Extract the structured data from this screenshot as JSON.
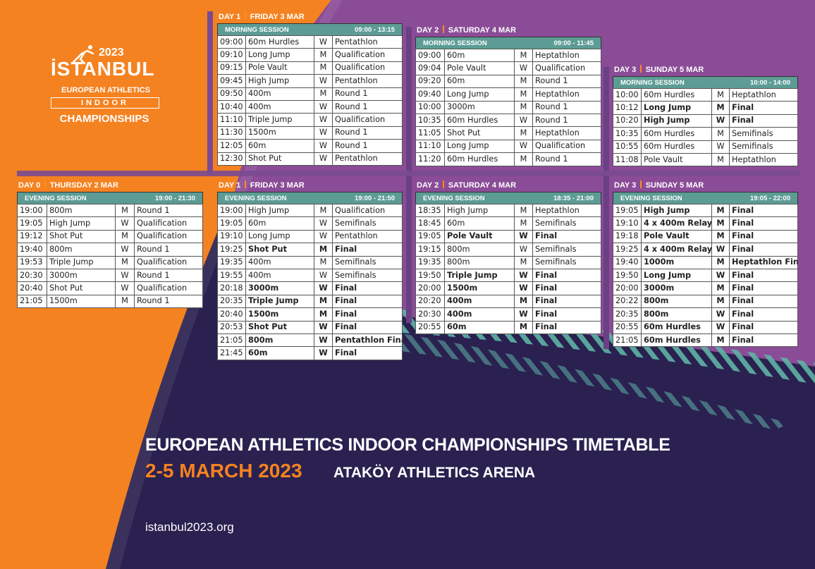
{
  "colors": {
    "orange": "#f58220",
    "purple": "#8b4c97",
    "navy": "#2a2150",
    "session_header": "#5c9c95",
    "accent_stripe": "#5fb3a7"
  },
  "logo": {
    "year": "2023",
    "city": "İSTANBUL",
    "org": "EUROPEAN ATHLETICS",
    "indoor": "INDOOR",
    "championships": "CHAMPIONSHIPS"
  },
  "footer": {
    "headline": "EUROPEAN ATHLETICS INDOOR CHAMPIONSHIPS TIMETABLE",
    "dates": "2-5 MARCH 2023",
    "venue": "ATAKÖY ATHLETICS ARENA",
    "website": "istanbul2023.org"
  },
  "blocks": {
    "d0e": {
      "day": "DAY 0",
      "date": "THURSDAY 2 MAR",
      "session": "EVENING SESSION",
      "time": "19:00 - 21:30",
      "rows": [
        {
          "t": "19:00",
          "e": "800m",
          "g": "M",
          "r": "Round 1"
        },
        {
          "t": "19:05",
          "e": "High Jump",
          "g": "W",
          "r": "Qualification"
        },
        {
          "t": "19:12",
          "e": "Shot Put",
          "g": "M",
          "r": "Qualification"
        },
        {
          "t": "19:40",
          "e": "800m",
          "g": "W",
          "r": "Round 1"
        },
        {
          "t": "19:53",
          "e": "Triple Jump",
          "g": "M",
          "r": "Qualification"
        },
        {
          "t": "20:30",
          "e": "3000m",
          "g": "W",
          "r": "Round 1"
        },
        {
          "t": "20:40",
          "e": "Shot Put",
          "g": "W",
          "r": "Qualification"
        },
        {
          "t": "21:05",
          "e": "1500m",
          "g": "M",
          "r": "Round 1"
        }
      ]
    },
    "d1m": {
      "day": "DAY 1",
      "date": "FRIDAY 3 MAR",
      "session": "MORNING SESSION",
      "time": "09:00 - 13:15",
      "rows": [
        {
          "t": "09:00",
          "e": "60m Hurdles",
          "g": "W",
          "r": "Pentathlon"
        },
        {
          "t": "09:10",
          "e": "Long Jump",
          "g": "M",
          "r": "Qualification"
        },
        {
          "t": "09:15",
          "e": "Pole Vault",
          "g": "M",
          "r": "Qualification"
        },
        {
          "t": "09:45",
          "e": "High Jump",
          "g": "W",
          "r": "Pentathlon"
        },
        {
          "t": "09:50",
          "e": "400m",
          "g": "M",
          "r": "Round 1"
        },
        {
          "t": "10:40",
          "e": "400m",
          "g": "W",
          "r": "Round 1"
        },
        {
          "t": "11:10",
          "e": "Triple Jump",
          "g": "W",
          "r": "Qualification"
        },
        {
          "t": "11:30",
          "e": "1500m",
          "g": "W",
          "r": "Round 1"
        },
        {
          "t": "12:05",
          "e": "60m",
          "g": "W",
          "r": "Round 1"
        },
        {
          "t": "12:30",
          "e": "Shot Put",
          "g": "W",
          "r": "Pentathlon"
        }
      ]
    },
    "d1e": {
      "day": "DAY 1",
      "date": "FRIDAY 3 MAR",
      "session": "EVENING SESSION",
      "time": "19:00 - 21:50",
      "rows": [
        {
          "t": "19:00",
          "e": "High Jump",
          "g": "M",
          "r": "Qualification"
        },
        {
          "t": "19:05",
          "e": "60m",
          "g": "W",
          "r": "Semifinals"
        },
        {
          "t": "19:10",
          "e": "Long Jump",
          "g": "W",
          "r": "Pentathlon"
        },
        {
          "t": "19:25",
          "e": "Shot Put",
          "g": "M",
          "r": "Final",
          "b": true
        },
        {
          "t": "19:35",
          "e": "400m",
          "g": "M",
          "r": "Semifinals"
        },
        {
          "t": "19:55",
          "e": "400m",
          "g": "W",
          "r": "Semifinals"
        },
        {
          "t": "20:18",
          "e": "3000m",
          "g": "W",
          "r": "Final",
          "b": true
        },
        {
          "t": "20:35",
          "e": "Triple Jump",
          "g": "M",
          "r": "Final",
          "b": true
        },
        {
          "t": "20:40",
          "e": "1500m",
          "g": "M",
          "r": "Final",
          "b": true
        },
        {
          "t": "20:53",
          "e": "Shot Put",
          "g": "W",
          "r": "Final",
          "b": true
        },
        {
          "t": "21:05",
          "e": "800m",
          "g": "W",
          "r": "Pentathlon Final",
          "b": true
        },
        {
          "t": "21:45",
          "e": "60m",
          "g": "W",
          "r": "Final",
          "b": true
        }
      ]
    },
    "d2m": {
      "day": "DAY 2",
      "date": "SATURDAY 4 MAR",
      "session": "MORNING SESSION",
      "time": "09:00 - 11:45",
      "rows": [
        {
          "t": "09:00",
          "e": "60m",
          "g": "M",
          "r": "Heptathlon"
        },
        {
          "t": "09:04",
          "e": "Pole Vault",
          "g": "W",
          "r": "Qualification"
        },
        {
          "t": "09:20",
          "e": "60m",
          "g": "M",
          "r": "Round 1"
        },
        {
          "t": "09:40",
          "e": "Long Jump",
          "g": "M",
          "r": "Heptathlon"
        },
        {
          "t": "10:00",
          "e": "3000m",
          "g": "M",
          "r": "Round 1"
        },
        {
          "t": "10:35",
          "e": "60m Hurdles",
          "g": "W",
          "r": "Round 1"
        },
        {
          "t": "11:05",
          "e": "Shot Put",
          "g": "M",
          "r": "Heptathlon"
        },
        {
          "t": "11:10",
          "e": "Long Jump",
          "g": "W",
          "r": "Qualification"
        },
        {
          "t": "11:20",
          "e": "60m Hurdles",
          "g": "M",
          "r": "Round 1"
        }
      ]
    },
    "d2e": {
      "day": "DAY 2",
      "date": "SATURDAY 4 MAR",
      "session": "EVENING SESSION",
      "time": "18:35 - 21:00",
      "rows": [
        {
          "t": "18:35",
          "e": "High Jump",
          "g": "M",
          "r": "Heptathlon"
        },
        {
          "t": "18:45",
          "e": "60m",
          "g": "M",
          "r": "Semifinals"
        },
        {
          "t": "19:05",
          "e": "Pole Vault",
          "g": "W",
          "r": "Final",
          "b": true
        },
        {
          "t": "19:15",
          "e": "800m",
          "g": "W",
          "r": "Semifinals"
        },
        {
          "t": "19:35",
          "e": "800m",
          "g": "M",
          "r": "Semifinals"
        },
        {
          "t": "19:50",
          "e": "Triple Jump",
          "g": "W",
          "r": "Final",
          "b": true
        },
        {
          "t": "20:00",
          "e": "1500m",
          "g": "W",
          "r": "Final",
          "b": true
        },
        {
          "t": "20:20",
          "e": "400m",
          "g": "M",
          "r": "Final",
          "b": true
        },
        {
          "t": "20:30",
          "e": "400m",
          "g": "W",
          "r": "Final",
          "b": true
        },
        {
          "t": "20:55",
          "e": "60m",
          "g": "M",
          "r": "Final",
          "b": true
        }
      ]
    },
    "d3m": {
      "day": "DAY 3",
      "date": "SUNDAY 5 MAR",
      "session": "MORNING SESSION",
      "time": "10:00 - 14:00",
      "rows": [
        {
          "t": "10:00",
          "e": "60m Hurdles",
          "g": "M",
          "r": "Heptathlon"
        },
        {
          "t": "10:12",
          "e": "Long Jump",
          "g": "M",
          "r": "Final",
          "b": true
        },
        {
          "t": "10:20",
          "e": "High Jump",
          "g": "W",
          "r": "Final",
          "b": true
        },
        {
          "t": "10:35",
          "e": "60m Hurdles",
          "g": "M",
          "r": "Semifinals"
        },
        {
          "t": "10:55",
          "e": "60m Hurdles",
          "g": "W",
          "r": "Semifinals"
        },
        {
          "t": "11:08",
          "e": "Pole Vault",
          "g": "M",
          "r": "Heptathlon"
        }
      ]
    },
    "d3e": {
      "day": "DAY 3",
      "date": "SUNDAY 5 MAR",
      "session": "EVENING SESSION",
      "time": "19:05 - 22:00",
      "rows": [
        {
          "t": "19:05",
          "e": "High Jump",
          "g": "M",
          "r": "Final",
          "b": true
        },
        {
          "t": "19:10",
          "e": "4 x 400m Relay",
          "g": "M",
          "r": "Final",
          "b": true
        },
        {
          "t": "19:18",
          "e": "Pole Vault",
          "g": "M",
          "r": "Final",
          "b": true
        },
        {
          "t": "19:25",
          "e": "4 x 400m Relay",
          "g": "W",
          "r": "Final",
          "b": true
        },
        {
          "t": "19:40",
          "e": "1000m",
          "g": "M",
          "r": "Heptathlon Final",
          "b": true
        },
        {
          "t": "19:50",
          "e": "Long Jump",
          "g": "W",
          "r": "Final",
          "b": true
        },
        {
          "t": "20:00",
          "e": "3000m",
          "g": "M",
          "r": "Final",
          "b": true
        },
        {
          "t": "20:22",
          "e": "800m",
          "g": "M",
          "r": "Final",
          "b": true
        },
        {
          "t": "20:35",
          "e": "800m",
          "g": "W",
          "r": "Final",
          "b": true
        },
        {
          "t": "20:55",
          "e": "60m Hurdles",
          "g": "W",
          "r": "Final",
          "b": true
        },
        {
          "t": "21:05",
          "e": "60m Hurdles",
          "g": "M",
          "r": "Final",
          "b": true
        }
      ]
    }
  }
}
